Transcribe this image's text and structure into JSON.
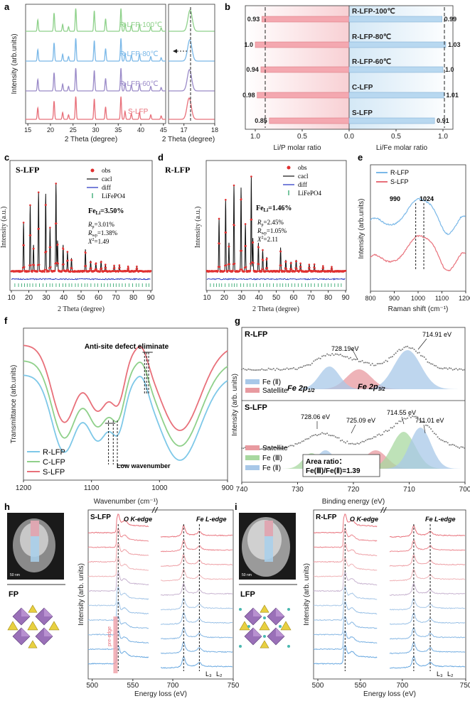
{
  "panel_letters": {
    "a": "a",
    "b": "b",
    "c": "c",
    "d": "d",
    "e": "e",
    "f": "f",
    "g": "g",
    "h": "h",
    "i": "i"
  },
  "colors": {
    "r100": "#8ed18a",
    "r80": "#7ab8e8",
    "r60": "#9a8ac8",
    "slfp": "#e8707a",
    "cyan": "#7ec8e8",
    "green": "#8fd08a",
    "red": "#e8707a",
    "blue": "#a8c8e8",
    "pink": "#e89aa0"
  },
  "panel_a": {
    "ylabel": "Intensity (arb.units)",
    "xlabel": "2 Theta (degree)",
    "xlabel_zoom": "2 Theta (degree)",
    "xticks": [
      "15",
      "20",
      "25",
      "30",
      "35",
      "40",
      "45"
    ],
    "xticks_zoom": [
      "17",
      "18"
    ],
    "labels": [
      "R-LFP-100℃",
      "R-LFP-80℃",
      "R-LFP-60℃",
      "S-LFP"
    ]
  },
  "panel_b": {
    "left_axis_label": "Li/P molar ratio",
    "right_axis_label": "Li/Fe molar ratio",
    "left_ticks": [
      "1.0",
      "0.5",
      "0.0"
    ],
    "right_ticks": [
      "0.5",
      "1.0"
    ],
    "rows": [
      {
        "name": "R-LFP-100℃",
        "li_p": 0.93,
        "li_fe": 0.99,
        "li_p_label": "0.93",
        "li_fe_label": "0.99"
      },
      {
        "name": "R-LFP-80℃",
        "li_p": 1.0,
        "li_fe": 1.03,
        "li_p_label": "1.0",
        "li_fe_label": "1.03"
      },
      {
        "name": "R-LFP-60℃",
        "li_p": 0.94,
        "li_fe": 1.0,
        "li_p_label": "0.94",
        "li_fe_label": "1.0"
      },
      {
        "name": "C-LFP",
        "li_p": 0.98,
        "li_fe": 1.01,
        "li_p_label": "0.98",
        "li_fe_label": "1.01"
      },
      {
        "name": "S-LFP",
        "li_p": 0.85,
        "li_fe": 0.91,
        "li_p_label": "0.85",
        "li_fe_label": "0.91"
      }
    ]
  },
  "panel_c": {
    "title": "S-LFP",
    "ylabel": "Intensity (a.u.)",
    "xlabel": "2 Theta (degree)",
    "xticks": [
      "10",
      "20",
      "30",
      "40",
      "50",
      "60",
      "70",
      "80",
      "90"
    ],
    "legend": [
      "obs",
      "cacl",
      "diff",
      "LiFePO4"
    ],
    "fe_li": "Fe_Li=3.50%",
    "fe_li_main": "Fe",
    "fe_li_sub": "Li",
    "fe_li_val": "=3.50%",
    "rp": "=3.01%",
    "rwp": "=1.38%",
    "x2": "=1.49"
  },
  "panel_d": {
    "title": "R-LFP",
    "ylabel": "Intensity (a.u.)",
    "xlabel": "2 Theta (degree)",
    "xticks": [
      "10",
      "20",
      "30",
      "40",
      "50",
      "60",
      "70",
      "80",
      "90"
    ],
    "legend": [
      "obs",
      "cacl",
      "diff",
      "LiFePO4"
    ],
    "fe_li_main": "Fe",
    "fe_li_sub": "Li",
    "fe_li_val": "=1.46%",
    "rp": "=2.45%",
    "rwp": "=1.05%",
    "x2": "=2.11"
  },
  "panel_e": {
    "ylabel": "Intensity (arb.units)",
    "xlabel": "Raman shift (cm⁻¹)",
    "xticks": [
      "800",
      "900",
      "1000",
      "1100",
      "1200"
    ],
    "legend": [
      "R-LFP",
      "S-LFP"
    ],
    "peak1": "990",
    "peak2": "1024"
  },
  "panel_f": {
    "ylabel": "Transmittance (arb.units)",
    "xlabel": "Wavenumber (cm⁻¹)",
    "xticks": [
      "1200",
      "1100",
      "1000",
      "900"
    ],
    "legend": [
      "R-LFP",
      "C-LFP",
      "S-LFP"
    ],
    "annotation_top": "Anti-site defect eliminate",
    "annotation_low": "Low wavenumber"
  },
  "panel_g": {
    "ylabel": "Intensity (arb. units)",
    "xlabel": "Binding energy (eV)",
    "xticks": [
      "740",
      "730",
      "720",
      "710",
      "700"
    ],
    "top_title": "R-LFP",
    "bottom_title": "S-LFP",
    "top_peaks": [
      "728.19eV",
      "714.91 eV"
    ],
    "fe_label_12_main": "Fe 2p",
    "fe_label_12_sub": "1/2",
    "fe_label_32_main": "Fe 2p",
    "fe_label_32_sub": "3/2",
    "top_legend": [
      "Fe (Ⅱ)",
      "Satellite"
    ],
    "bottom_peaks": [
      "728.06 eV",
      "725.09 eV",
      "714.55 eV",
      "711.01 eV"
    ],
    "bottom_legend": [
      "Satellite",
      "Fe (Ⅲ)",
      "Fe (Ⅱ)"
    ],
    "area_ratio_label": "Area ratio：",
    "area_ratio_value": "Fe(Ⅲ)/Fe(Ⅱ)=1.39"
  },
  "panel_h": {
    "title": "S-LFP",
    "ylabel": "Intensity (arb. units)",
    "xlabel": "Energy loss (eV)",
    "xticks": [
      "500",
      "550",
      "700",
      "750"
    ],
    "o_edge": "O K-edge",
    "fe_edge": "Fe L-edge",
    "pre_edge": "pre-edge",
    "l3": "L₃",
    "l2": "L₂",
    "struct_label": "FP",
    "scale": "50 nm"
  },
  "panel_i": {
    "title": "R-LFP",
    "ylabel": "Intensity (arb. units)",
    "xlabel": "Energy loss (eV)",
    "xticks": [
      "500",
      "550",
      "700",
      "750"
    ],
    "o_edge": "O K-edge",
    "fe_edge": "Fe L-edge",
    "l3": "L₃",
    "l2": "L₂",
    "struct_label": "LFP",
    "scale": "50 nm"
  },
  "chart_data": [
    {
      "type": "line",
      "panel": "a",
      "series": [
        {
          "name": "R-LFP-100℃"
        },
        {
          "name": "R-LFP-80℃"
        },
        {
          "name": "R-LFP-60℃"
        },
        {
          "name": "S-LFP"
        }
      ],
      "xlim": [
        15,
        45
      ]
    },
    {
      "type": "bar",
      "panel": "b",
      "categories": [
        "R-LFP-100℃",
        "R-LFP-80℃",
        "R-LFP-60℃",
        "C-LFP",
        "S-LFP"
      ],
      "series": [
        {
          "name": "Li/P molar ratio",
          "values": [
            0.93,
            1.0,
            0.94,
            0.98,
            0.85
          ]
        },
        {
          "name": "Li/Fe molar ratio",
          "values": [
            0.99,
            1.03,
            1.0,
            1.01,
            0.91
          ]
        }
      ]
    },
    {
      "type": "line",
      "panel": "e",
      "xlim": [
        800,
        1200
      ],
      "peaks": [
        990,
        1024
      ]
    },
    {
      "type": "line",
      "panel": "f",
      "xlim": [
        1200,
        900
      ]
    },
    {
      "type": "line",
      "panel": "g",
      "xlim": [
        740,
        700
      ]
    }
  ]
}
